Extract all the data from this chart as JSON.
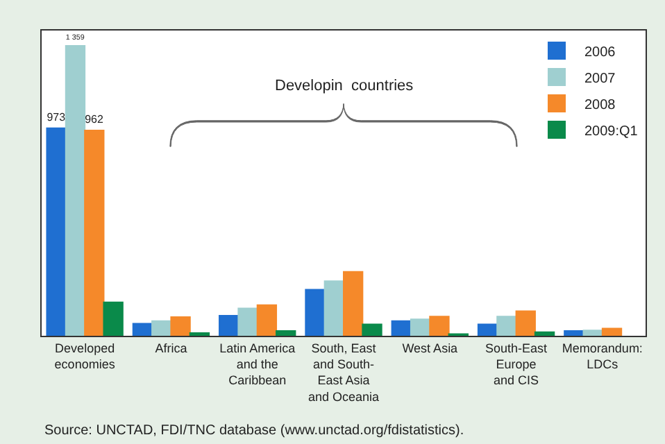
{
  "chart_data": {
    "type": "bar",
    "categories": [
      "Developed\neconomies",
      "Africa",
      "Latin America\nand the\nCaribbean",
      "South, East\nand South-\nEast Asia\nand Oceania",
      "West Asia",
      "South-East\nEurope\nand CIS",
      "Memorandum:\nLDCs"
    ],
    "series": [
      {
        "name": "2006",
        "color": "#1f6fd1",
        "values": [
          973,
          57,
          94,
          216,
          69,
          54,
          23
        ],
        "value_labels": [
          "973",
          null,
          null,
          null,
          null,
          null,
          null
        ]
      },
      {
        "name": "2007",
        "color": "#9fcfd0",
        "values": [
          1359,
          69,
          128,
          256,
          77,
          90,
          25
        ],
        "value_labels": [
          "1 359",
          null,
          null,
          null,
          null,
          null,
          null
        ]
      },
      {
        "name": "2008",
        "color": "#f5892a",
        "values": [
          962,
          88,
          144,
          300,
          90,
          115,
          34
        ],
        "value_labels": [
          "962",
          null,
          null,
          null,
          null,
          null,
          null
        ]
      },
      {
        "name": "2009:Q1",
        "color": "#0a8a4a",
        "values": [
          157,
          13,
          23,
          54,
          8,
          17,
          null
        ]
      }
    ],
    "legend": "top right",
    "tick_labels": "x",
    "annotations": [
      "Developin  countries",
      "Source: UNCTAD, FDI/TNC database (www.unctad.org/fdistatistics)."
    ]
  }
}
